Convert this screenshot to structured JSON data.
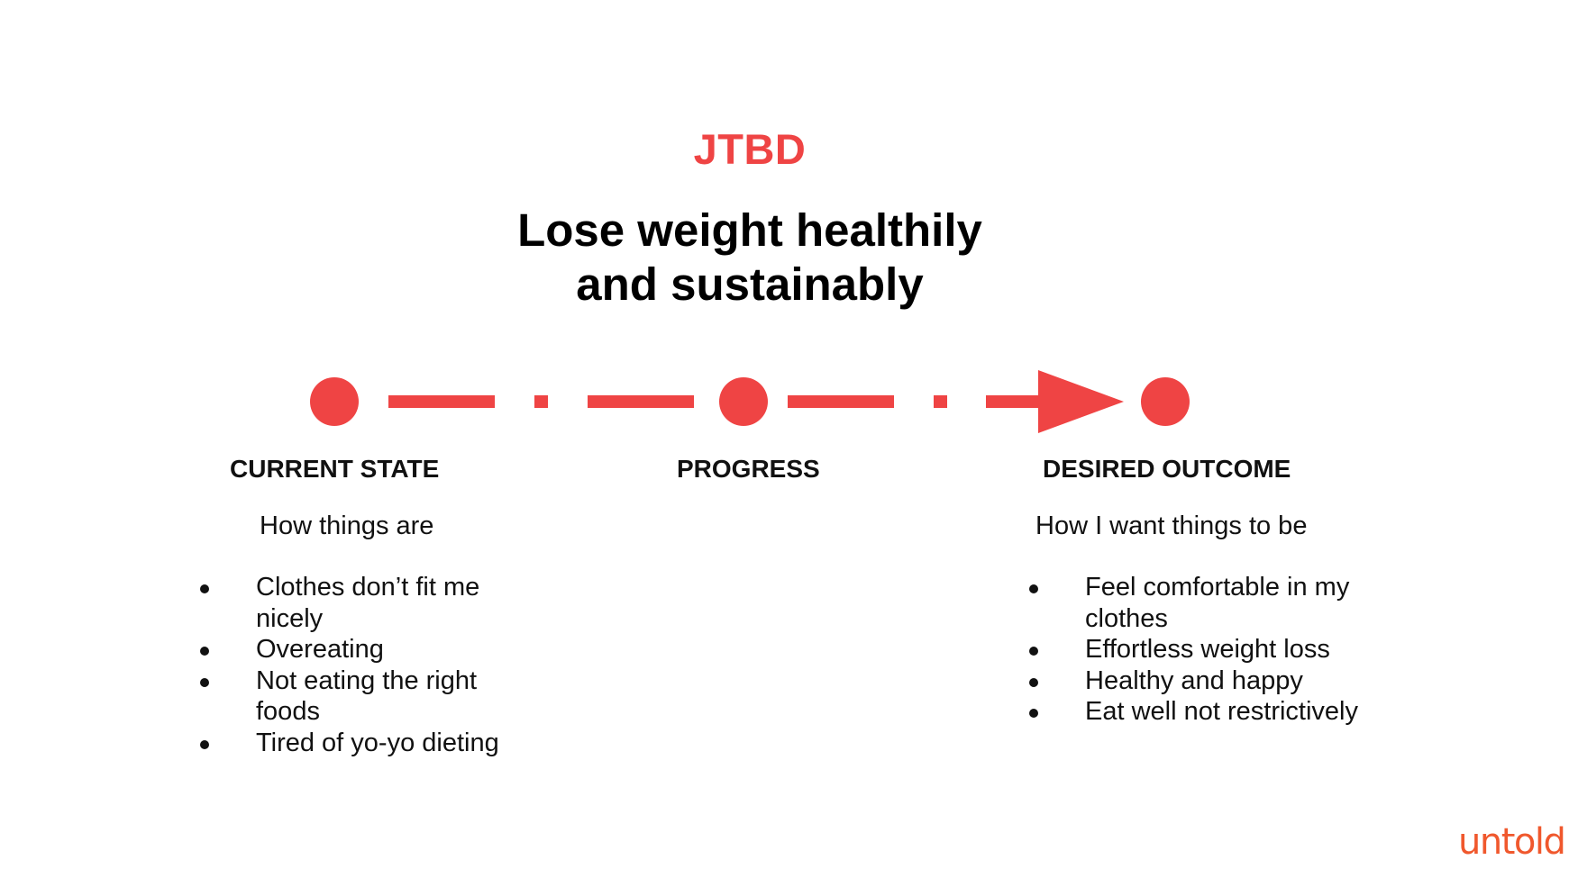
{
  "slide": {
    "kicker": "JTBD",
    "headline": {
      "line1": "Lose weight healthily",
      "line2": "and sustainably"
    }
  },
  "stages": {
    "current": {
      "label": "CURRENT STATE",
      "subtitle": "How things are",
      "items": [
        "Clothes don’t fit me nicely",
        "Overeating",
        "Not eating the right foods",
        "Tired of yo-yo dieting"
      ]
    },
    "progress": {
      "label": "PROGRESS"
    },
    "desired": {
      "label": "DESIRED OUTCOME",
      "subtitle": "How I want things to be",
      "items": [
        "Feel comfortable in my clothes",
        "Effortless weight loss",
        "Healthy and happy",
        "Eat well not restrictively"
      ]
    }
  },
  "brand": {
    "logo_text": "untold"
  },
  "colors": {
    "accent": "#ef4444",
    "text": "#111111",
    "logo": "#f0582d"
  }
}
